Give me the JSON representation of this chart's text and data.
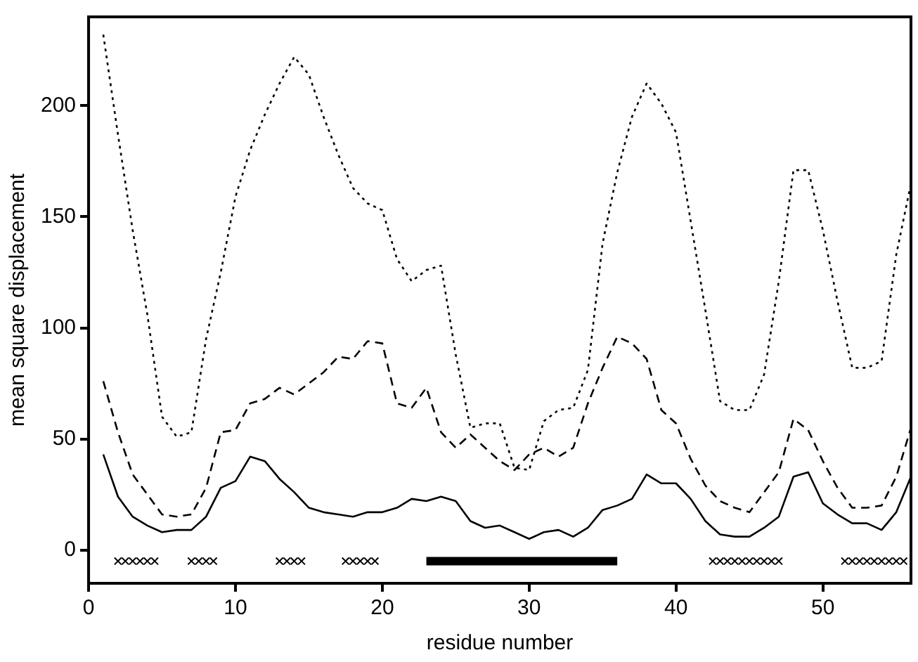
{
  "chart_data": {
    "type": "line",
    "xlabel": "residue number",
    "ylabel": "mean square displacement",
    "xlim": [
      0,
      56
    ],
    "xticks": [
      0,
      10,
      20,
      30,
      40,
      50
    ],
    "ylim": [
      -15,
      240
    ],
    "yticks": [
      0,
      50,
      100,
      150,
      200
    ],
    "grid": false,
    "legend": false,
    "marker": "none",
    "x": [
      1,
      2,
      3,
      4,
      5,
      6,
      7,
      8,
      9,
      10,
      11,
      12,
      13,
      14,
      15,
      16,
      17,
      18,
      19,
      20,
      21,
      22,
      23,
      24,
      25,
      26,
      27,
      28,
      29,
      30,
      31,
      32,
      33,
      34,
      35,
      36,
      37,
      38,
      39,
      40,
      41,
      42,
      43,
      44,
      45,
      46,
      47,
      48,
      49,
      50,
      51,
      52,
      53,
      54,
      55,
      56
    ],
    "series": [
      {
        "color": "#000000",
        "line_style": "solid",
        "values": [
          43,
          24,
          15,
          11,
          8,
          9,
          9,
          15,
          28,
          31,
          42,
          40,
          32,
          26,
          19,
          17,
          16,
          15,
          17,
          17,
          19,
          23,
          22,
          24,
          22,
          13,
          10,
          11,
          8,
          5,
          8,
          9,
          6,
          10,
          18,
          20,
          23,
          34,
          30,
          30,
          23,
          13,
          7,
          6,
          6,
          10,
          15,
          33,
          35,
          21,
          16,
          12,
          12,
          9,
          17,
          33
        ]
      },
      {
        "color": "#000000",
        "line_style": "dashed",
        "values": [
          76,
          53,
          34,
          25,
          16,
          15,
          16,
          28,
          53,
          54,
          66,
          68,
          73,
          70,
          75,
          80,
          87,
          86,
          94,
          93,
          66,
          64,
          73,
          53,
          46,
          52,
          46,
          40,
          36,
          43,
          46,
          42,
          46,
          66,
          82,
          96,
          93,
          86,
          63,
          57,
          41,
          29,
          22,
          19,
          17,
          26,
          35,
          59,
          54,
          40,
          28,
          19,
          19,
          20,
          33,
          55
        ]
      },
      {
        "color": "#000000",
        "line_style": "dotted",
        "values": [
          232,
          187,
          144,
          106,
          60,
          51,
          53,
          95,
          125,
          159,
          180,
          196,
          210,
          222,
          214,
          195,
          178,
          163,
          156,
          153,
          131,
          121,
          126,
          128,
          88,
          55,
          57,
          57,
          37,
          36,
          58,
          63,
          64,
          81,
          138,
          170,
          195,
          210,
          201,
          188,
          148,
          108,
          67,
          63,
          63,
          79,
          121,
          171,
          171,
          144,
          112,
          82,
          82,
          85,
          133,
          165
        ]
      },
      {
        "type": "scatter",
        "color": "#000000",
        "marker": "cross",
        "x": [
          2,
          2.5,
          3,
          3.5,
          4,
          4.5,
          7,
          7.5,
          8,
          8.5,
          13,
          13.5,
          14,
          14.5,
          17.5,
          18,
          18.5,
          19,
          19.5,
          42.5,
          43,
          43.5,
          44,
          44.5,
          45,
          45.5,
          46,
          46.5,
          47,
          51.5,
          52,
          52.5,
          53,
          53.5,
          54,
          54.5,
          55,
          55.5
        ],
        "values": [
          -5,
          -5,
          -5,
          -5,
          -5,
          -5,
          -5,
          -5,
          -5,
          -5,
          -5,
          -5,
          -5,
          -5,
          -5,
          -5,
          -5,
          -5,
          -5,
          -5,
          -5,
          -5,
          -5,
          -5,
          -5,
          -5,
          -5,
          -5,
          -5,
          -5,
          -5,
          -5,
          -5,
          -5,
          -5,
          -5,
          -5,
          -5
        ]
      },
      {
        "color": "#000000",
        "line_style": "solid",
        "x": [
          23,
          36
        ],
        "values": [
          -5,
          -5
        ]
      }
    ]
  }
}
